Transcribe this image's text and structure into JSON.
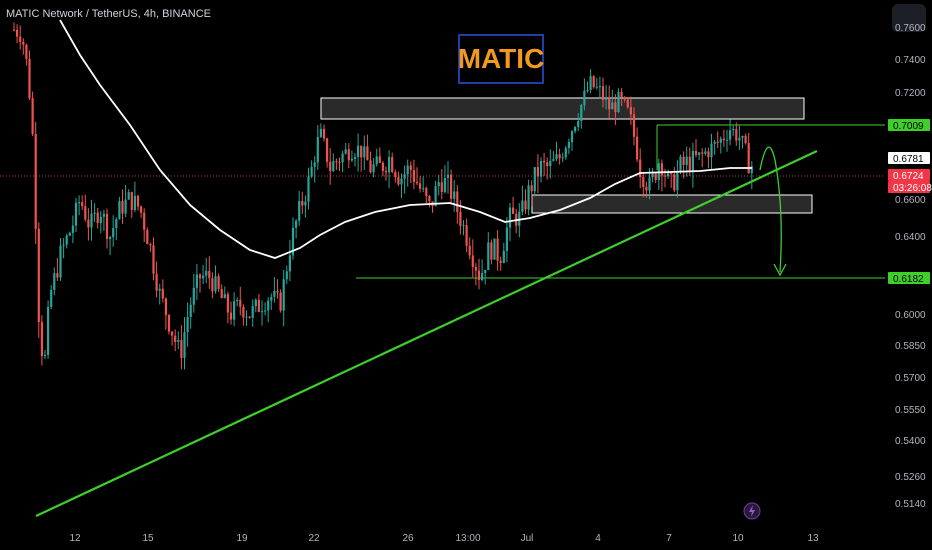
{
  "header": {
    "symbol_line": "MATIC Network / TetherUS, 4h, BINANCE"
  },
  "title_badge": {
    "text": "MATIC",
    "text_color": "#f29a1f",
    "border_color": "#1f3ea6"
  },
  "chart_data": {
    "type": "candlestick",
    "title": "",
    "y_axis": {
      "ticks": [
        "0.7600",
        "0.7400",
        "0.7200",
        "0.7000",
        "0.6800",
        "0.6600",
        "0.6400",
        "0.6200",
        "0.6000",
        "0.5850",
        "0.5700",
        "0.5550",
        "0.5400",
        "0.5260",
        "0.5140"
      ]
    },
    "x_axis": {
      "ticks": [
        "12",
        "15",
        "19",
        "22",
        "26",
        "13:00",
        "Jul",
        "4",
        "7",
        "10",
        "13"
      ]
    },
    "price_labels": [
      {
        "value": "0.7009",
        "style": "green"
      },
      {
        "value": "0.6781",
        "style": "white"
      },
      {
        "value": "0.6724",
        "style": "red"
      },
      {
        "value": "03:26:08",
        "style": "red"
      },
      {
        "value": "0.6182",
        "style": "green"
      }
    ],
    "levels": {
      "resistance_zone": [
        0.713,
        0.724
      ],
      "support_zone": [
        0.658,
        0.663
      ],
      "upper_line": 0.7009,
      "target_line": 0.6182
    },
    "trendline": {
      "from": {
        "x": "start",
        "y": 0.511
      },
      "to": {
        "x": "Jul 11",
        "y": 0.683
      }
    },
    "moving_average": {
      "color": "#ffffff"
    },
    "colors": {
      "up": "#26a69a",
      "down": "#ef5350",
      "trendline": "#3ecf2a",
      "background": "#000000"
    },
    "grid": false
  }
}
